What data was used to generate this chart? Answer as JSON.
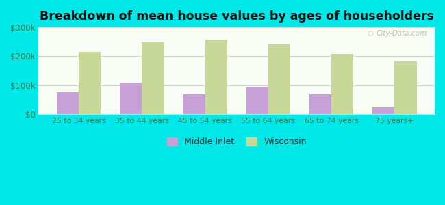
{
  "categories": [
    "25 to 34 years",
    "35 to 44 years",
    "45 to 54 years",
    "55 to 64 years",
    "65 to 74 years",
    "75 years+"
  ],
  "middle_inlet": [
    75000,
    110000,
    70000,
    95000,
    70000,
    25000
  ],
  "wisconsin": [
    215000,
    248000,
    258000,
    242000,
    208000,
    183000
  ],
  "middle_inlet_color": "#c8a0d8",
  "wisconsin_color": "#c8d898",
  "title": "Breakdown of mean house values by ages of householders",
  "title_fontsize": 12.5,
  "legend_labels": [
    "Middle Inlet",
    "Wisconsin"
  ],
  "ylim": [
    0,
    300000
  ],
  "yticks": [
    0,
    100000,
    200000,
    300000
  ],
  "ytick_labels": [
    "$0",
    "$100k",
    "$200k",
    "$300k"
  ],
  "plot_bg_top": "#eaf5e4",
  "plot_bg_bottom": "#f8fdf5",
  "outer_background": "#00e8e8",
  "bar_width": 0.35,
  "grid_color": "#d0d8c8"
}
